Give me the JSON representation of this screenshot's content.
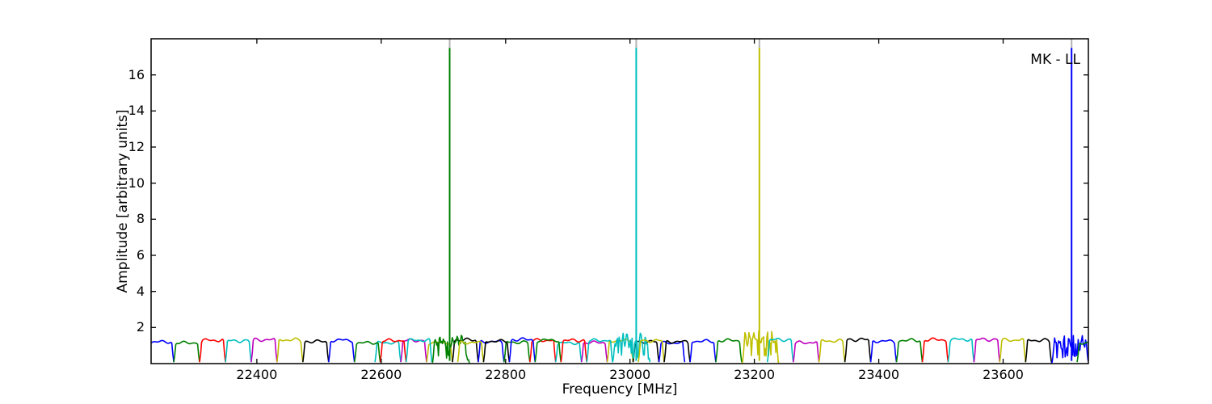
{
  "chart_data": {
    "type": "line",
    "title": "",
    "xlabel": "Frequency [MHz]",
    "ylabel": "Amplitude [arbitrary units]",
    "annotation": "MK - LL",
    "xlim": [
      22230,
      23737
    ],
    "ylim": [
      0,
      18
    ],
    "xticks": [
      22400,
      22600,
      22800,
      23000,
      23200,
      23400,
      23600
    ],
    "yticks": [
      2,
      4,
      6,
      8,
      10,
      12,
      14,
      16
    ],
    "grid": false,
    "legend": "none",
    "background": "#ffffff",
    "frame_color": "#000000",
    "color_cycle": [
      "#0000ff",
      "#008000",
      "#ff0000",
      "#00bfbf",
      "#bf00bf",
      "#bfbf00",
      "#000000"
    ],
    "spikes": [
      {
        "freq_mhz": 22710,
        "peak": 17.5,
        "color": "#008000"
      },
      {
        "freq_mhz": 23010,
        "peak": 17.5,
        "color": "#00bfbf"
      },
      {
        "freq_mhz": 23208,
        "peak": 17.5,
        "color": "#bfbf00"
      },
      {
        "freq_mhz": 23710,
        "peak": 17.5,
        "color": "#0000ff"
      }
    ],
    "spike_tip_color": "#b3b3b3",
    "bandpass": {
      "description": "contiguous per-subband bandpass humps along the bottom, colors cycling",
      "baseline_amplitude": 1.15,
      "dip_amplitude": 0.08,
      "start_mhz": 22225,
      "spacing_mhz": 41.5,
      "count": 36,
      "spiky_width_factor": 1.45,
      "overlap_region": {
        "start_mhz": 22590,
        "count": 12,
        "offset_color_index": 3
      }
    }
  }
}
